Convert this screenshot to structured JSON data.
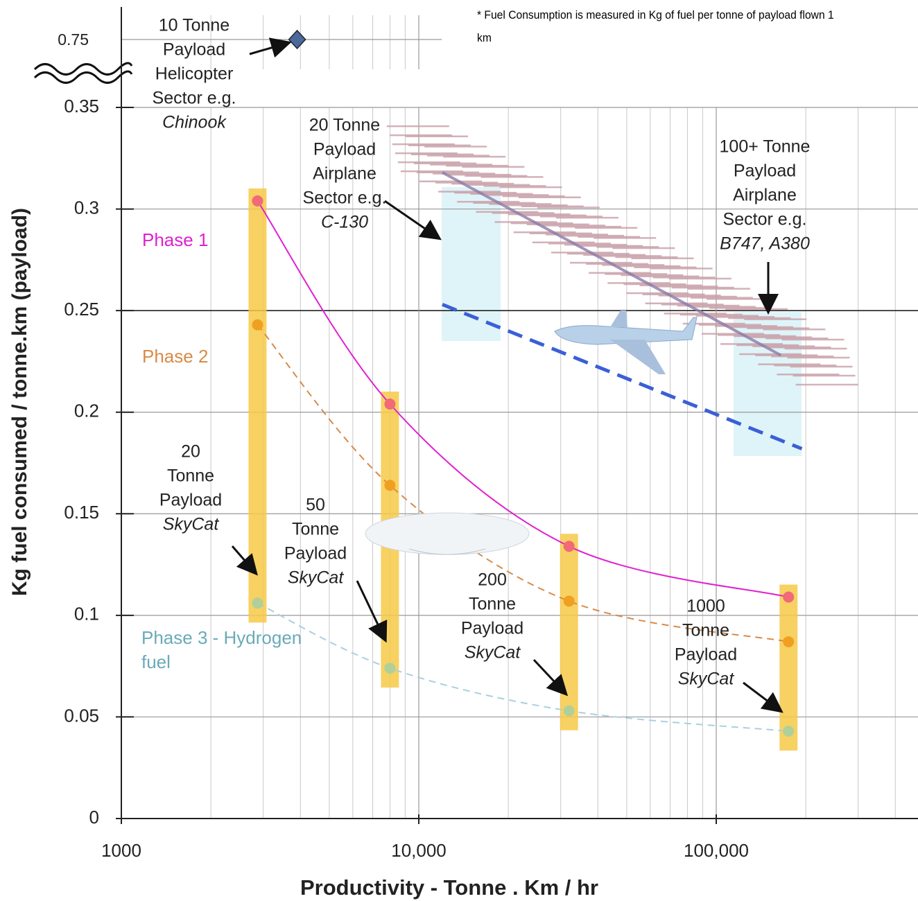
{
  "chart_data": {
    "type": "line",
    "x_label": "Productivity  -  Tonne . Km / hr",
    "y_label": "Kg fuel consumed / tonne.km (payload)",
    "footnote": "* Fuel Consumption is measured in Kg of fuel per tonne of payload flown 1 km",
    "xscale": "log",
    "xlim": [
      1000,
      480000
    ],
    "xticks": [
      1000,
      {
        "value": 10000,
        "label": "10,000"
      },
      {
        "value": 100000,
        "label": "100,000"
      }
    ],
    "ylim": [
      0,
      0.35
    ],
    "yticks": [
      0,
      0.05,
      0.1,
      0.15,
      0.2,
      0.25,
      0.3,
      0.35
    ],
    "ybreak_tick": 0.75,
    "grid": true,
    "series": [
      {
        "name": "Phase 1",
        "color": "#e020d0",
        "point_color": "#f06a78",
        "dashed": false,
        "x": [
          2870,
          8000,
          32000,
          175000
        ],
        "values": [
          0.304,
          0.204,
          0.134,
          0.109
        ]
      },
      {
        "name": "Phase 2",
        "color": "#d88a48",
        "point_color": "#f0a020",
        "dashed": true,
        "x": [
          2870,
          8000,
          32000,
          175000
        ],
        "values": [
          0.243,
          0.164,
          0.107,
          0.087
        ]
      },
      {
        "name": "Phase 3 - Hydrogen fuel",
        "color": "#a8d0e0",
        "point_color": "#b0d098",
        "dashed": true,
        "x": [
          2870,
          8000,
          32000,
          175000
        ],
        "values": [
          0.106,
          0.074,
          0.053,
          0.043
        ]
      },
      {
        "color": "#3a5fd8",
        "dashed": true,
        "x": [
          12000,
          194000
        ],
        "values": [
          0.253,
          0.182
        ]
      },
      {
        "color": "#8a7aa8",
        "dashed": false,
        "band": true,
        "x": [
          12000,
          165000
        ],
        "values": [
          0.318,
          0.228
        ]
      }
    ],
    "helicopter": {
      "x": 3900,
      "y": 0.75,
      "color": "#4a6a9a"
    },
    "annotations": [
      [
        "10 Tonne",
        "Payload",
        "Helicopter",
        "Sector e.g.",
        "Chinook"
      ],
      [
        "20 Tonne",
        "Payload",
        "Airplane",
        "Sector e.g.",
        "C-130"
      ],
      [
        "100+ Tonne",
        "Payload",
        "Airplane",
        "Sector e.g.",
        "B747, A380"
      ],
      [
        "20",
        "Tonne",
        "Payload",
        "SkyCat"
      ],
      [
        "50",
        "Tonne",
        "Payload",
        "SkyCat"
      ],
      [
        "200",
        "Tonne",
        "Payload",
        "SkyCat"
      ],
      [
        "1000",
        "Tonne",
        "Payload",
        "SkyCat"
      ]
    ]
  }
}
